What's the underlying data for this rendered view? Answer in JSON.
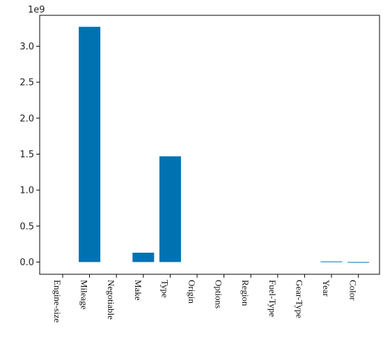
{
  "chart_data": {
    "type": "bar",
    "title": "",
    "xlabel": "",
    "ylabel": "",
    "y_offset_label": "1e9",
    "categories": [
      "Engine-size",
      "Mileage",
      "Negotiable",
      "Make",
      "Type",
      "Origin",
      "Options",
      "Region",
      "Fuel-Type",
      "Gear-Type",
      "Year",
      "Color"
    ],
    "values": [
      0,
      3270000000,
      0,
      130000000,
      1470000000,
      0,
      0,
      0,
      0,
      0,
      8000000,
      -5000000
    ],
    "ylim": [
      -170000000,
      3430000000
    ],
    "yticks": [
      0,
      500000000,
      1000000000,
      1500000000,
      2000000000,
      2500000000,
      3000000000
    ],
    "ytick_labels": [
      "0.0",
      "0.5",
      "1.0",
      "1.5",
      "2.0",
      "2.5",
      "3.0"
    ],
    "bar_color": "#0072b2",
    "grid": false
  }
}
